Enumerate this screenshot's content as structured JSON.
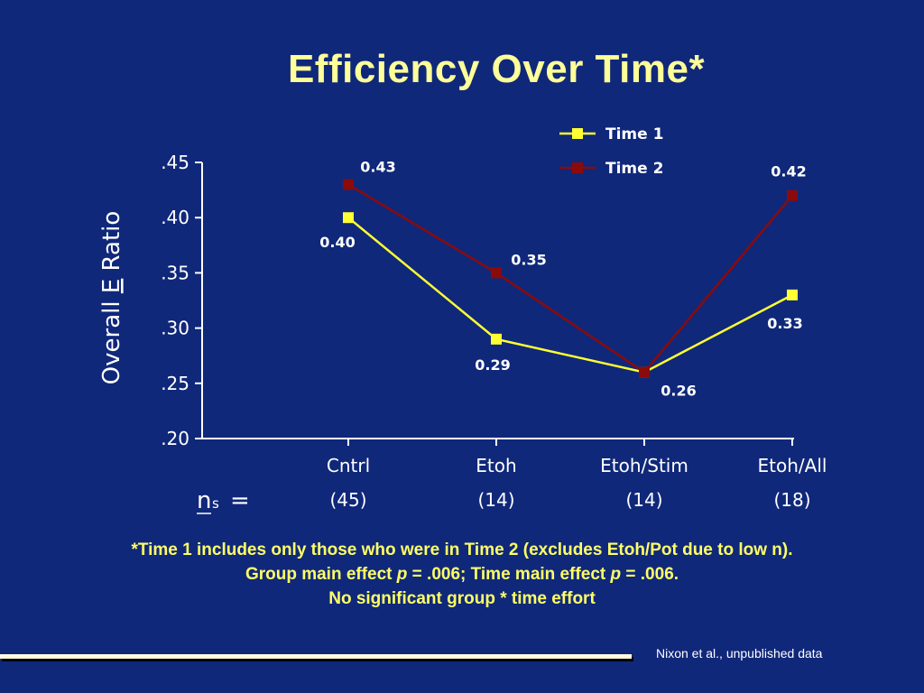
{
  "title": "Efficiency Over Time*",
  "chart_data": {
    "type": "line",
    "ylabel_prefix": "Overall ",
    "ylabel_underlined": "E",
    "ylabel_suffix": " Ratio",
    "ylim": [
      0.2,
      0.45
    ],
    "yticks": [
      0.2,
      0.25,
      0.3,
      0.35,
      0.4,
      0.45
    ],
    "ytick_labels": [
      ".20",
      ".25",
      ".30",
      ".35",
      ".40",
      ".45"
    ],
    "categories": [
      "Cntrl",
      "Etoh",
      "Etoh/Stim",
      "Etoh/All"
    ],
    "n_prefix": "n",
    "n_sub": "s",
    "n_equals": "=",
    "n_values": [
      "(45)",
      "(14)",
      "(14)",
      "(18)"
    ],
    "legend_position": "top-right",
    "grid": false,
    "series": [
      {
        "name": "Time 1",
        "color": "#ffff33",
        "values": [
          0.4,
          0.29,
          0.26,
          0.33
        ],
        "labels": [
          "0.40",
          "0.29",
          "0.26",
          "0.33"
        ]
      },
      {
        "name": "Time 2",
        "color": "#8b0a0a",
        "values": [
          0.43,
          0.35,
          0.26,
          0.42
        ],
        "labels": [
          "0.43",
          "0.35",
          "",
          "0.42"
        ]
      }
    ]
  },
  "footnote": {
    "line1": "*Time 1 includes only those who were in Time 2 (excludes Etoh/Pot due to low n).",
    "line2_a": "Group main effect ",
    "line2_p1": "p",
    "line2_b": " = .006; Time main effect ",
    "line2_p2": "p",
    "line2_c": " = .006.",
    "line3": "No significant group * time effort"
  },
  "citation": "Nixon et al., unpublished data",
  "colors": {
    "background": "#10287a",
    "title": "#ffff99",
    "footnote": "#ffff66",
    "axis_text": "#ffffff"
  }
}
